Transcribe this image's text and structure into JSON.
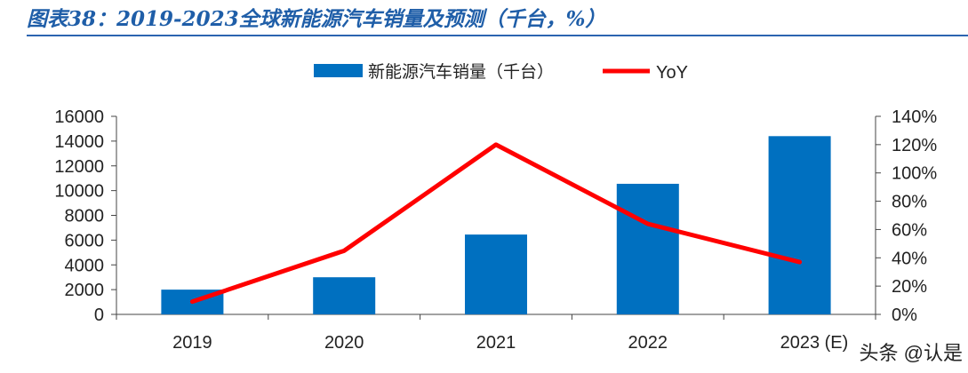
{
  "header": {
    "title": "图表38：2019-2023全球新能源汽车销量及预测（千台，%）"
  },
  "chart_data": {
    "type": "bar",
    "categories": [
      "2019",
      "2020",
      "2021",
      "2022",
      "2023 (E)"
    ],
    "series": [
      {
        "name": "新能源汽车销量（千台）",
        "type": "bar",
        "axis": "left",
        "color": "#0070c0",
        "values": [
          2000,
          3000,
          6450,
          10550,
          14400
        ]
      },
      {
        "name": "YoY",
        "type": "line",
        "axis": "right",
        "color": "#ff0000",
        "values": [
          0.09,
          0.45,
          1.2,
          0.64,
          0.37
        ]
      }
    ],
    "y_left": {
      "min": 0,
      "max": 16000,
      "step": 2000,
      "ticks": [
        "0",
        "2000",
        "4000",
        "6000",
        "8000",
        "10000",
        "12000",
        "14000",
        "16000"
      ]
    },
    "y_right": {
      "min": 0,
      "max": 1.4,
      "step": 0.2,
      "ticks": [
        "0%",
        "20%",
        "40%",
        "60%",
        "80%",
        "100%",
        "120%",
        "140%"
      ]
    },
    "legend_position": "top-center",
    "grid": false
  },
  "watermark": {
    "text": "头条 @认是"
  }
}
